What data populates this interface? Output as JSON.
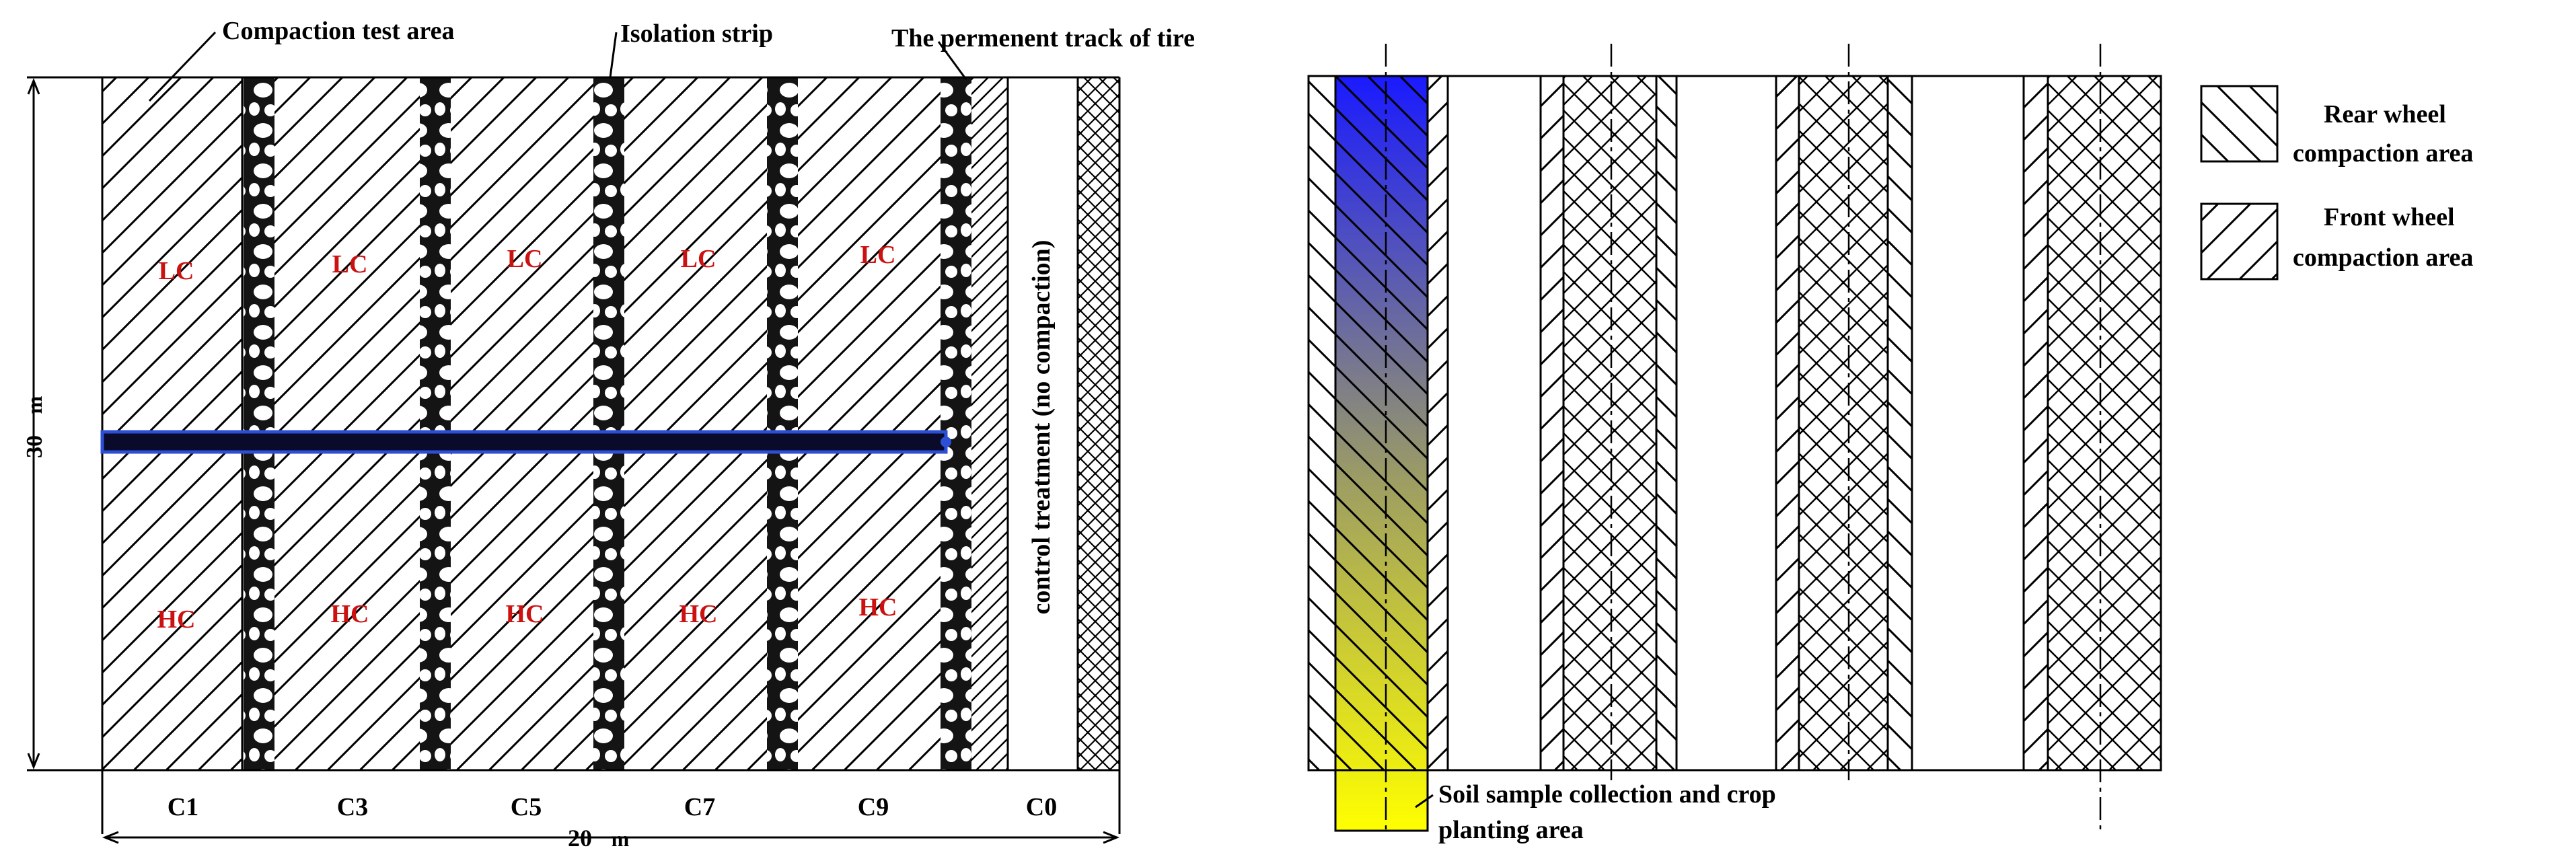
{
  "left_panel": {
    "label_compaction_test_area": "Compaction test area",
    "label_isolation_strip": "Isolation strip",
    "label_permanent_track": "The permenent track of tire",
    "control_label": "control treatment (no compaction)",
    "height_number": "30",
    "height_unit": "m",
    "width_number": "20",
    "width_unit": "m",
    "plots": [
      {
        "upper": "LC",
        "lower": "HC",
        "column": "C1"
      },
      {
        "upper": "LC",
        "lower": "HC",
        "column": "C3"
      },
      {
        "upper": "LC",
        "lower": "HC",
        "column": "C5"
      },
      {
        "upper": "LC",
        "lower": "HC",
        "column": "C7"
      },
      {
        "upper": "LC",
        "lower": "HC",
        "column": "C9"
      }
    ],
    "control_column": "C0"
  },
  "right_panel": {
    "legend": {
      "rear_line1": "Rear wheel",
      "rear_line2": "compaction area",
      "front_line1": "Front wheel",
      "front_line2": "compaction area"
    },
    "soil_label_line1": "Soil sample collection and crop",
    "soil_label_line2": "planting area"
  },
  "colors": {
    "line": "#000000",
    "plot_text": "#cc1111",
    "divider_fill": "#0a0a2a",
    "divider_edge": "#2d4fd6",
    "gradient_top": "#1a1aff",
    "gradient_bottom": "#ffff00"
  }
}
